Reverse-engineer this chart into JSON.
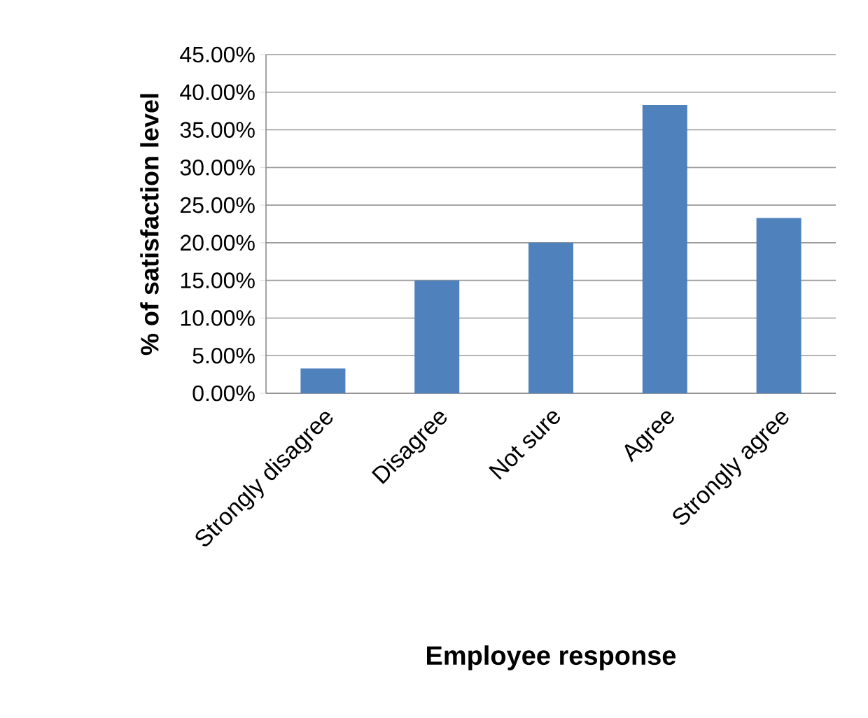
{
  "chart_data": {
    "type": "bar",
    "xlabel": "Employee response",
    "ylabel": "% of satisfaction level",
    "categories": [
      "Strongly disagree",
      "Disagree",
      "Not sure",
      "Agree",
      "Strongly agree"
    ],
    "values": [
      3.3,
      15,
      20,
      38.3,
      23.3
    ],
    "color": "#4f81bd",
    "ylim": [
      0,
      45
    ],
    "yticks": [
      {
        "value": 0,
        "label": "0.00%"
      },
      {
        "value": 5,
        "label": "5.00%"
      },
      {
        "value": 10,
        "label": "10.00%"
      },
      {
        "value": 15,
        "label": "15.00%"
      },
      {
        "value": 20,
        "label": "20.00%"
      },
      {
        "value": 25,
        "label": "25.00%"
      },
      {
        "value": 30,
        "label": "30.00%"
      },
      {
        "value": 35,
        "label": "35.00%"
      },
      {
        "value": 40,
        "label": "40.00%"
      },
      {
        "value": 45,
        "label": "45.00%"
      }
    ],
    "grid": "y"
  }
}
